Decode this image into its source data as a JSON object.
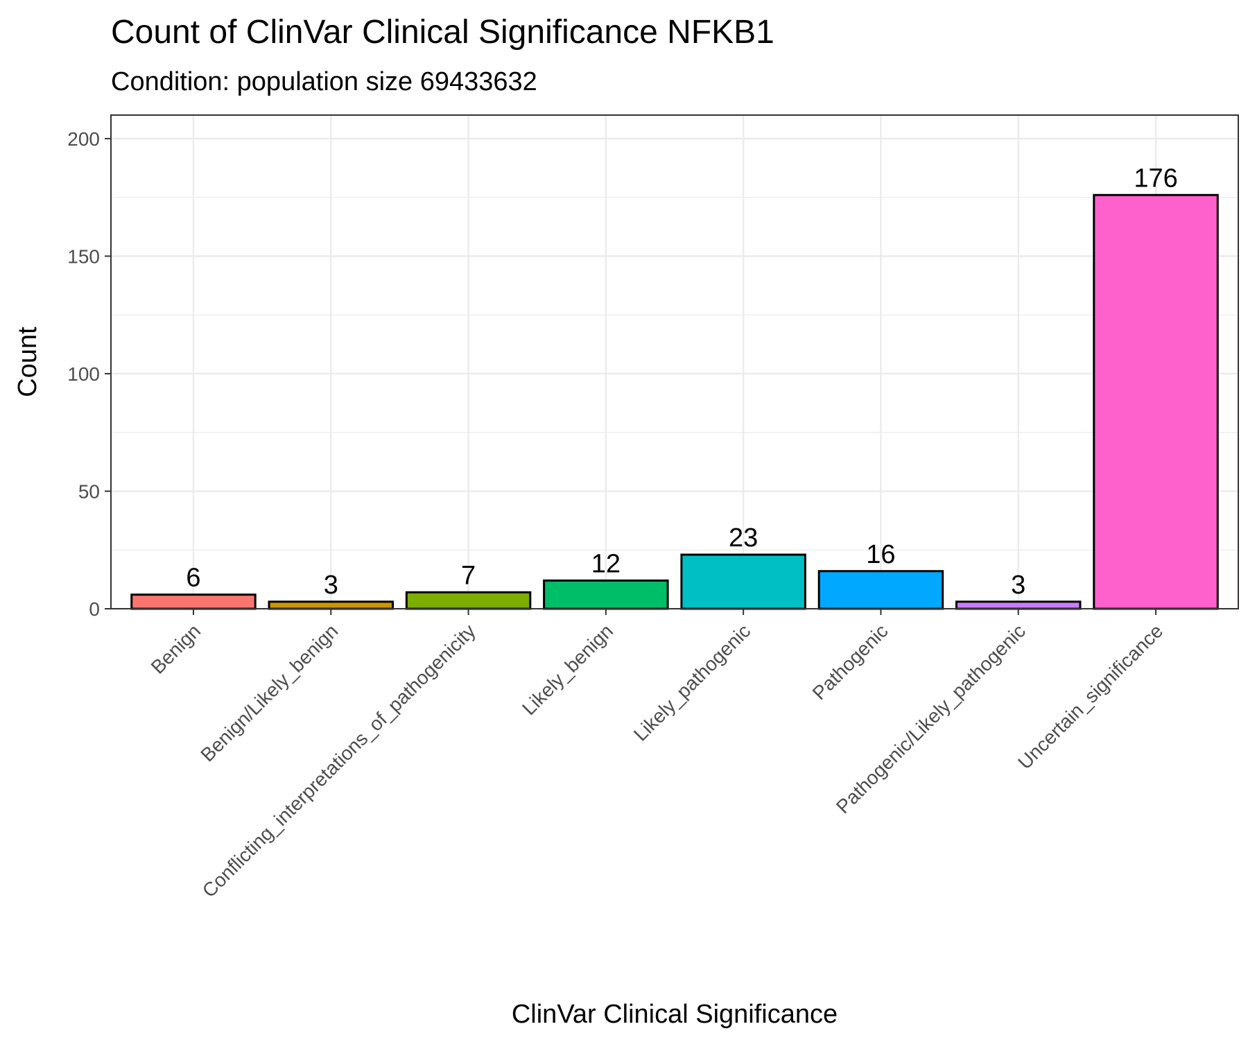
{
  "chart_data": {
    "type": "bar",
    "title": "Count of ClinVar Clinical Significance NFKB1",
    "subtitle": "Condition: population size 69433632",
    "xlabel": "ClinVar Clinical Significance",
    "ylabel": "Count",
    "ylim": [
      0,
      210
    ],
    "yticks": [
      0,
      50,
      100,
      150,
      200
    ],
    "grid": true,
    "legend": "none",
    "categories": [
      "Benign",
      "Benign/Likely_benign",
      "Conflicting_interpretations_of_pathogenicity",
      "Likely_benign",
      "Likely_pathogenic",
      "Pathogenic",
      "Pathogenic/Likely_pathogenic",
      "Uncertain_significance"
    ],
    "values": [
      6,
      3,
      7,
      12,
      23,
      16,
      3,
      176
    ],
    "colors": [
      "#F8766D",
      "#CD9600",
      "#7CAE00",
      "#00BE67",
      "#00BFC4",
      "#00A9FF",
      "#C77CFF",
      "#FF61CC"
    ]
  }
}
